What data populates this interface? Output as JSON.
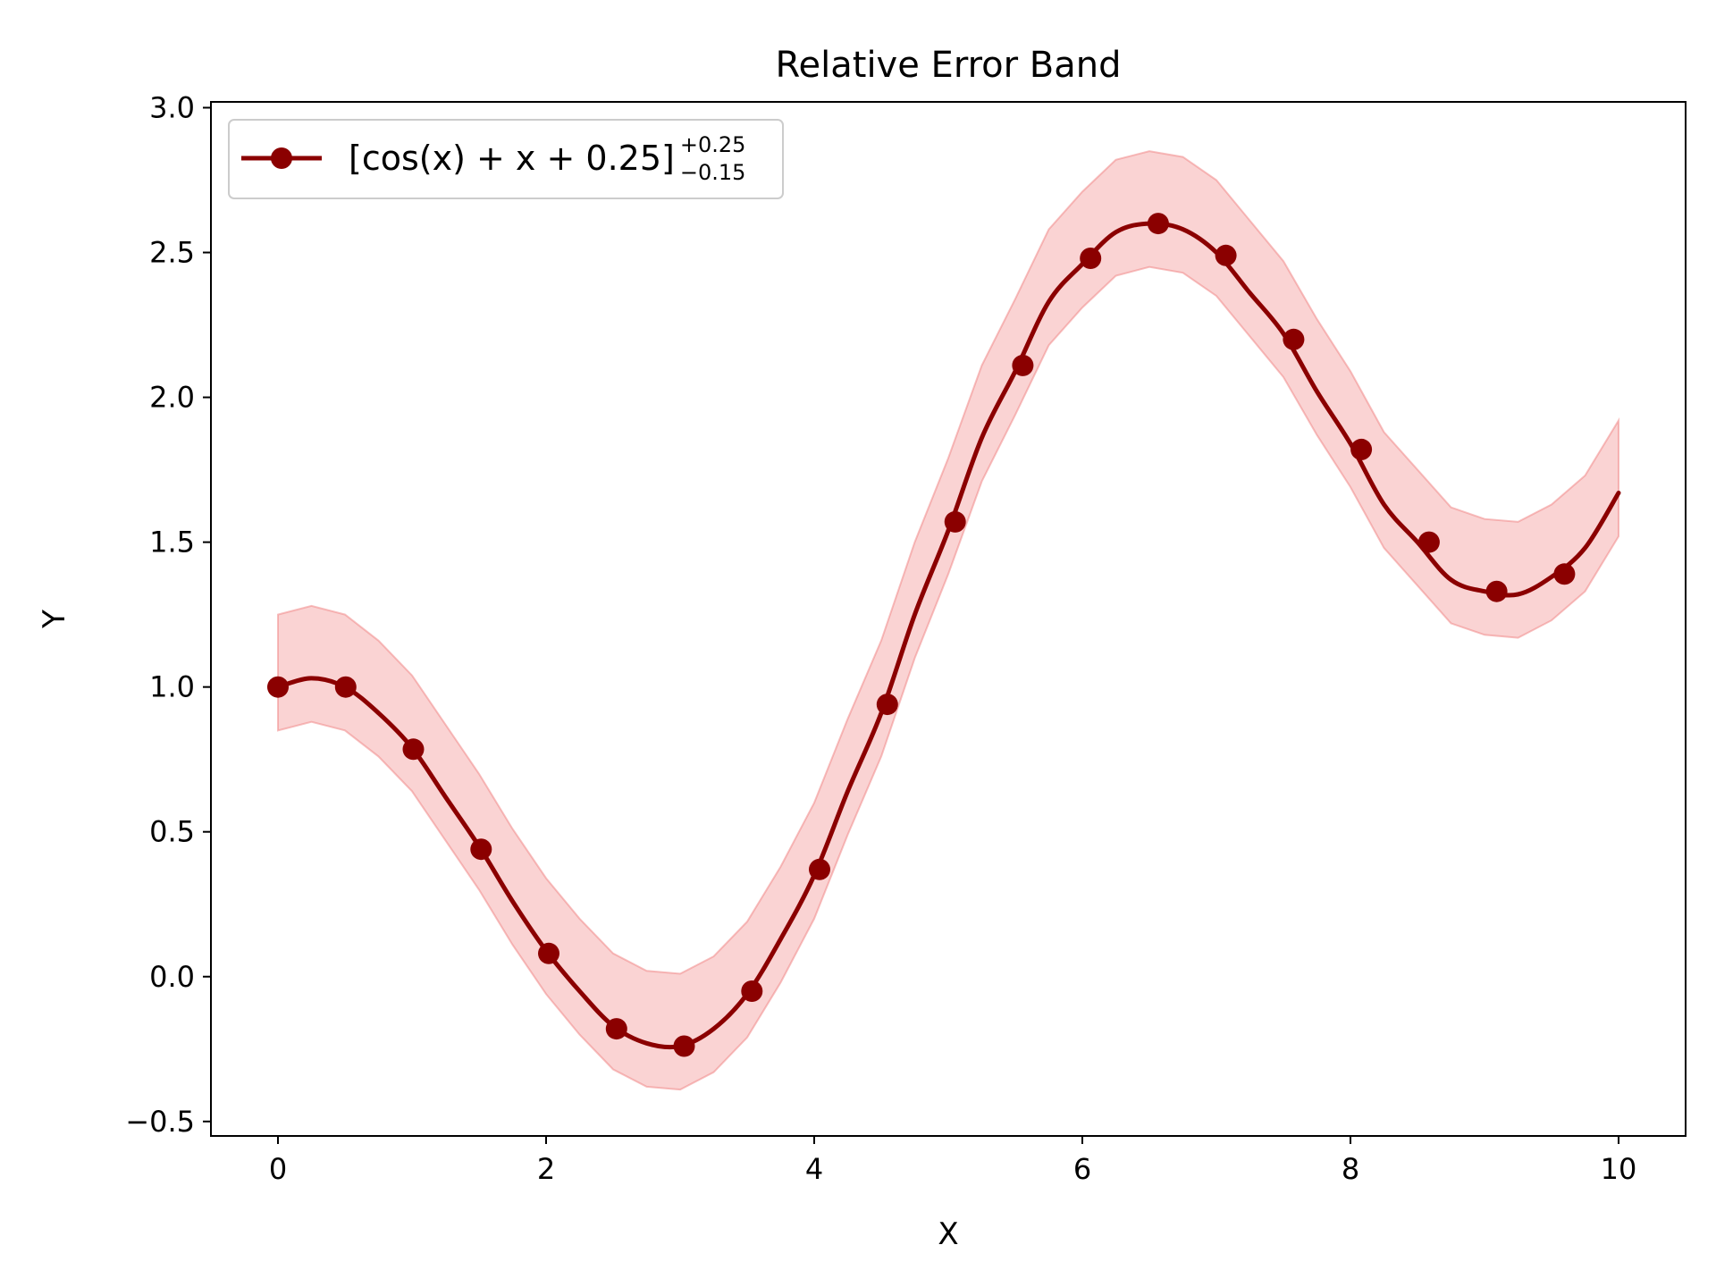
{
  "chart_data": {
    "type": "line",
    "title": "Relative Error Band",
    "xlabel": "X",
    "ylabel": "Y",
    "xlim": [
      -0.5,
      10.5
    ],
    "ylim": [
      -0.55,
      3.02
    ],
    "xticks": [
      0,
      2,
      4,
      6,
      8,
      10
    ],
    "xtick_labels": [
      "0",
      "2",
      "4",
      "6",
      "8",
      "10"
    ],
    "yticks": [
      -0.5,
      0.0,
      0.5,
      1.0,
      1.5,
      2.0,
      2.5,
      3.0
    ],
    "ytick_labels": [
      "−0.5",
      "0.0",
      "0.5",
      "1.0",
      "1.5",
      "2.0",
      "2.5",
      "3.0"
    ],
    "grid": false,
    "legend_position": "top-left",
    "legend": {
      "main": "[cos(x) + x + 0.25]",
      "sup": "+0.25",
      "sub": "−0.15"
    },
    "series": [
      {
        "name": "[cos(x) + x + 0.25]+0.25−0.15",
        "color": "#8b0000",
        "band_color": "#f08080",
        "band_upper_offset": 0.25,
        "band_lower_offset": 0.15,
        "markers": {
          "x": [
            0.0,
            0.505,
            1.01,
            1.515,
            2.02,
            2.525,
            3.03,
            3.535,
            4.04,
            4.545,
            5.051,
            5.556,
            6.061,
            6.566,
            7.071,
            7.576,
            8.081,
            8.586,
            9.091,
            9.596
          ],
          "y": [
            1.0,
            1.0,
            0.785,
            0.44,
            0.08,
            -0.18,
            -0.24,
            -0.05,
            0.37,
            0.94,
            1.57,
            2.11,
            2.48,
            2.6,
            2.49,
            2.2,
            1.82,
            1.5,
            1.33,
            1.39
          ]
        },
        "curve": {
          "x": [
            0.0,
            0.25,
            0.5,
            0.75,
            1.0,
            1.25,
            1.5,
            1.75,
            2.0,
            2.25,
            2.5,
            2.75,
            3.0,
            3.25,
            3.5,
            3.75,
            4.0,
            4.25,
            4.5,
            4.75,
            5.0,
            5.25,
            5.5,
            5.75,
            6.0,
            6.25,
            6.5,
            6.75,
            7.0,
            7.25,
            7.5,
            7.75,
            8.0,
            8.25,
            8.5,
            8.75,
            9.0,
            9.25,
            9.5,
            9.75,
            10.0
          ],
          "y": [
            1.0,
            1.03,
            1.0,
            0.91,
            0.79,
            0.62,
            0.45,
            0.26,
            0.09,
            -0.05,
            -0.17,
            -0.23,
            -0.24,
            -0.18,
            -0.06,
            0.13,
            0.35,
            0.64,
            0.91,
            1.25,
            1.54,
            1.86,
            2.09,
            2.33,
            2.46,
            2.57,
            2.6,
            2.58,
            2.5,
            2.36,
            2.22,
            2.02,
            1.84,
            1.63,
            1.5,
            1.37,
            1.33,
            1.32,
            1.38,
            1.48,
            1.67
          ]
        }
      }
    ]
  }
}
